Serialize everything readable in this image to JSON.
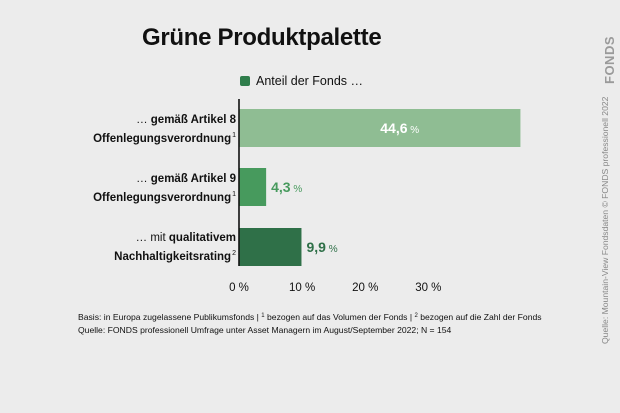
{
  "title": "Grüne Produktpalette",
  "legend": {
    "label": "Anteil der Fonds …",
    "color": "#2f7d4b"
  },
  "categories": [
    {
      "line1_prefix": "… ",
      "line1_bold": "gemäß Artikel 8",
      "line2": "Offenlegungsverordnung",
      "footnote_mark": "1"
    },
    {
      "line1_prefix": "… ",
      "line1_bold": "gemäß Artikel 9",
      "line2": "Offenlegungsverordnung",
      "footnote_mark": "1"
    },
    {
      "line1_prefix": "… mit ",
      "line1_bold": "qualitativem",
      "line2": "Nachhaltigkeitsrating",
      "footnote_mark": "2"
    }
  ],
  "footnotes": {
    "line1": {
      "part1": "Basis: in Europa zugelassene Publikumsfonds | ",
      "mark1": "1",
      "part2": " bezogen auf das Volumen der Fonds | ",
      "mark2": "2",
      "part3": " bezogen auf die Zahl der Fonds"
    },
    "line2": "Quelle: FONDS professionell Umfrage unter Asset Managern im August/September 2022; N = 154"
  },
  "side_text": "Quelle: Mountain-View Fondsdaten  © FONDS professionell 2022",
  "logo_text": "FONDS",
  "chart_data": {
    "type": "bar",
    "orientation": "horizontal",
    "categories": [
      "… gemäß Artikel 8 Offenlegungsverordnung",
      "… gemäß Artikel 9 Offenlegungsverordnung",
      "… mit qualitativem Nachhaltigkeitsrating"
    ],
    "series": [
      {
        "name": "Anteil der Fonds …",
        "values": [
          44.6,
          4.3,
          9.9
        ]
      }
    ],
    "value_labels": [
      "44,6",
      "4,3",
      "9,9"
    ],
    "value_unit": "%",
    "bar_colors": [
      "#8fbd93",
      "#479a5d",
      "#2f7048"
    ],
    "label_colors": [
      "#ffffff",
      "#479a5d",
      "#2f7048"
    ],
    "label_position": [
      "inside",
      "outside",
      "outside"
    ],
    "xlim": [
      0,
      45
    ],
    "x_ticks": [
      0,
      10,
      20,
      30
    ],
    "x_tick_labels": [
      "0 %",
      "10 %",
      "20 %",
      "30 %"
    ],
    "grid": false
  }
}
